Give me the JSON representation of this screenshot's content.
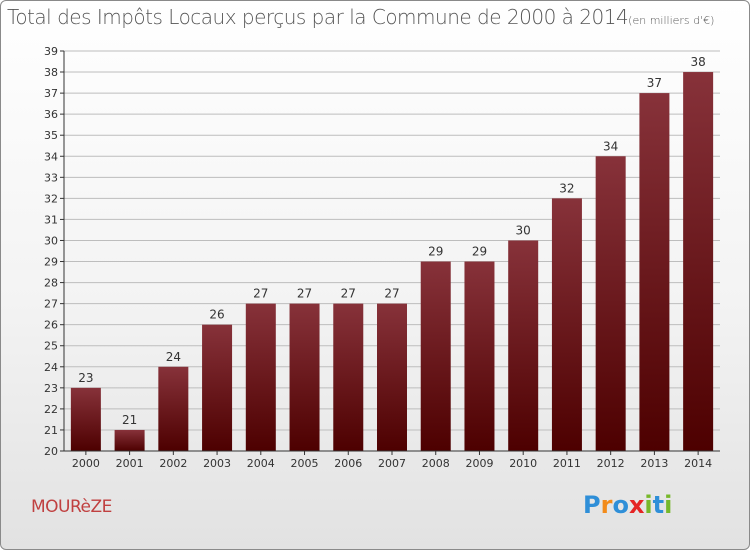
{
  "title": "Total des Impôts Locaux perçus par la Commune de 2000 à 2014",
  "title_unit": "(en milliers d'€)",
  "commune_name": "MOURèZE",
  "logo_text": "Proxiti",
  "colors": {
    "bar_top": "#87323a",
    "bar_bottom": "#4d0000",
    "grid": "#bdbdbd",
    "axis": "#333333",
    "commune": "#c04040",
    "logo": [
      "#2f8fd8",
      "#f28b1a",
      "#2f8fd8",
      "#e52424",
      "#77b82a",
      "#2f8fd8",
      "#77b82a"
    ]
  },
  "chart_data": {
    "type": "bar",
    "title": "Total des Impôts Locaux perçus par la Commune de 2000 à 2014",
    "xlabel": "",
    "ylabel": "(en milliers d'€)",
    "categories": [
      "2000",
      "2001",
      "2002",
      "2003",
      "2004",
      "2005",
      "2006",
      "2007",
      "2008",
      "2009",
      "2010",
      "2011",
      "2012",
      "2013",
      "2014"
    ],
    "values": [
      23,
      21,
      24,
      26,
      27,
      27,
      27,
      27,
      29,
      29,
      30,
      32,
      34,
      37,
      38
    ],
    "ylim": [
      20,
      39
    ],
    "yticks": [
      20,
      21,
      22,
      23,
      24,
      25,
      26,
      27,
      28,
      29,
      30,
      31,
      32,
      33,
      34,
      35,
      36,
      37,
      38,
      39
    ],
    "grid": true,
    "legend": "none"
  }
}
